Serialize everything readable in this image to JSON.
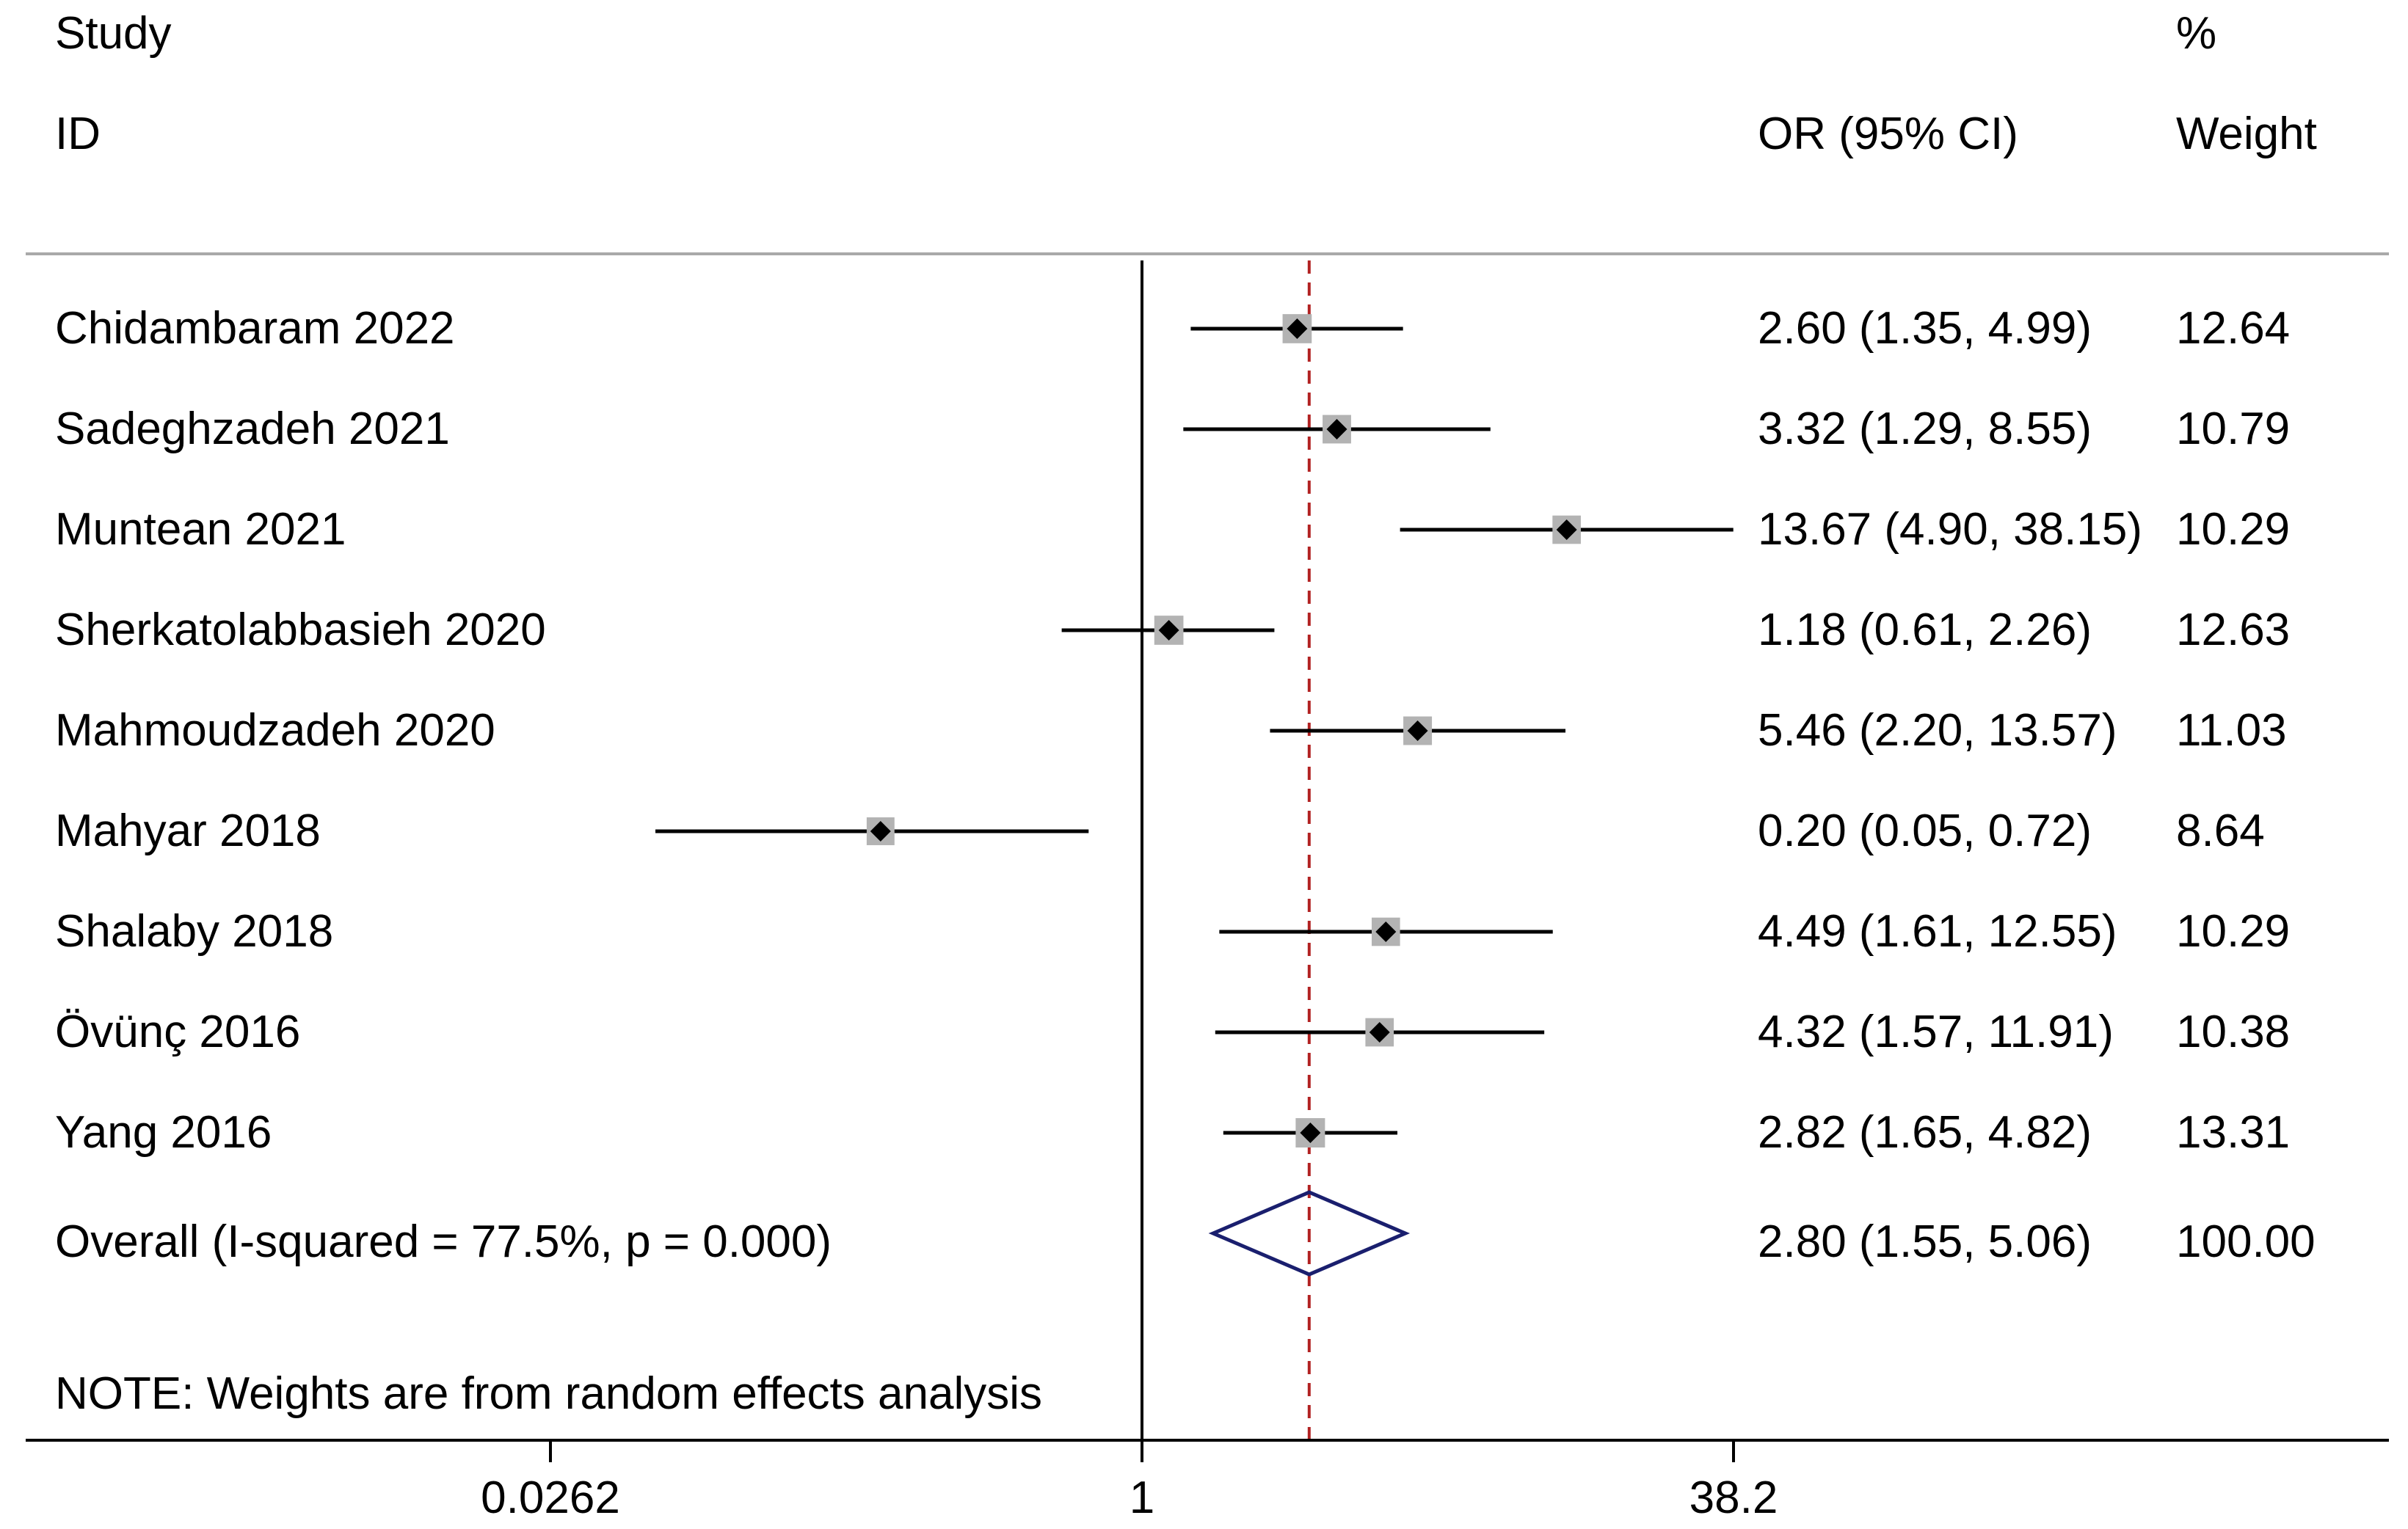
{
  "chart_data": {
    "type": "forest",
    "headers": {
      "study_line1": "Study",
      "study_line2": "ID",
      "effect": "OR (95% CI)",
      "weight_line1": "%",
      "weight_line2": "Weight"
    },
    "scale": "log",
    "null_value": 1,
    "xlim": [
      0.0262,
      38.2
    ],
    "xticks": [
      {
        "value": 0.0262,
        "label": "0.0262"
      },
      {
        "value": 1,
        "label": "1"
      },
      {
        "value": 38.2,
        "label": "38.2"
      }
    ],
    "studies": [
      {
        "id": "Chidambaram 2022",
        "or": 2.6,
        "lower": 1.35,
        "upper": 4.99,
        "ci_text": "2.60 (1.35, 4.99)",
        "weight": 12.64,
        "weight_text": "12.64"
      },
      {
        "id": "Sadeghzadeh 2021",
        "or": 3.32,
        "lower": 1.29,
        "upper": 8.55,
        "ci_text": "3.32 (1.29, 8.55)",
        "weight": 10.79,
        "weight_text": "10.79"
      },
      {
        "id": "Muntean 2021",
        "or": 13.67,
        "lower": 4.9,
        "upper": 38.15,
        "ci_text": "13.67 (4.90, 38.15)",
        "weight": 10.29,
        "weight_text": "10.29"
      },
      {
        "id": "Sherkatolabbasieh 2020",
        "or": 1.18,
        "lower": 0.61,
        "upper": 2.26,
        "ci_text": "1.18 (0.61, 2.26)",
        "weight": 12.63,
        "weight_text": "12.63"
      },
      {
        "id": "Mahmoudzadeh 2020",
        "or": 5.46,
        "lower": 2.2,
        "upper": 13.57,
        "ci_text": "5.46 (2.20, 13.57)",
        "weight": 11.03,
        "weight_text": "11.03"
      },
      {
        "id": "Mahyar 2018",
        "or": 0.2,
        "lower": 0.05,
        "upper": 0.72,
        "ci_text": "0.20 (0.05, 0.72)",
        "weight": 8.64,
        "weight_text": "8.64"
      },
      {
        "id": "Shalaby 2018",
        "or": 4.49,
        "lower": 1.61,
        "upper": 12.55,
        "ci_text": "4.49 (1.61, 12.55)",
        "weight": 10.29,
        "weight_text": "10.29"
      },
      {
        "id": "Övünç 2016",
        "or": 4.32,
        "lower": 1.57,
        "upper": 11.91,
        "ci_text": "4.32 (1.57, 11.91)",
        "weight": 10.38,
        "weight_text": "10.38"
      },
      {
        "id": "Yang 2016",
        "or": 2.82,
        "lower": 1.65,
        "upper": 4.82,
        "ci_text": "2.82 (1.65, 4.82)",
        "weight": 13.31,
        "weight_text": "13.31"
      }
    ],
    "overall": {
      "label": "Overall  (I-squared = 77.5%, p = 0.000)",
      "or": 2.8,
      "lower": 1.55,
      "upper": 5.06,
      "ci_text": "2.80 (1.55, 5.06)",
      "weight_text": "100.00"
    },
    "note": "NOTE: Weights are from random effects analysis",
    "colors": {
      "text": "#000000",
      "ci_line": "#000000",
      "weight_box": "#b3b3b3",
      "point": "#000000",
      "overall_diamond": "#1a1f6e",
      "overall_dashed_line": "#b22222",
      "null_line": "#000000",
      "separator": "#a9a9a9",
      "axis": "#000000"
    }
  }
}
